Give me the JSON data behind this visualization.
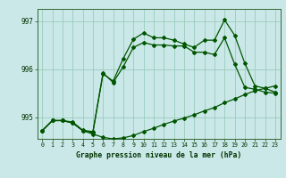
{
  "title": "Graphe pression niveau de la mer (hPa)",
  "background_color": "#cbe8e8",
  "grid_color": "#99ccbb",
  "line_color": "#005500",
  "xlim": [
    -0.5,
    23.5
  ],
  "ylim": [
    994.55,
    997.25
  ],
  "yticks": [
    995,
    996,
    997
  ],
  "ytick_labels": [
    "995",
    "996",
    "997"
  ],
  "xticks": [
    0,
    1,
    2,
    3,
    4,
    5,
    6,
    7,
    8,
    9,
    10,
    11,
    12,
    13,
    14,
    15,
    16,
    17,
    18,
    19,
    20,
    21,
    22,
    23
  ],
  "series1": [
    994.72,
    994.93,
    994.93,
    994.9,
    994.73,
    994.7,
    995.92,
    995.72,
    996.05,
    996.45,
    996.55,
    996.5,
    996.5,
    996.48,
    996.48,
    996.35,
    996.35,
    996.3,
    996.65,
    996.1,
    995.62,
    995.58,
    995.52,
    995.5
  ],
  "series2": [
    994.72,
    994.93,
    994.93,
    994.88,
    994.72,
    994.68,
    995.9,
    995.75,
    996.22,
    996.62,
    996.75,
    996.65,
    996.65,
    996.6,
    996.52,
    996.45,
    996.6,
    996.6,
    997.02,
    996.7,
    996.12,
    995.65,
    995.6,
    995.52
  ],
  "series3": [
    994.72,
    994.93,
    994.93,
    994.88,
    994.72,
    994.65,
    994.58,
    994.55,
    994.57,
    994.62,
    994.7,
    994.77,
    994.85,
    994.92,
    994.98,
    995.05,
    995.13,
    995.2,
    995.3,
    995.38,
    995.47,
    995.55,
    995.6,
    995.65
  ],
  "figwidth": 3.2,
  "figheight": 2.0,
  "dpi": 100
}
